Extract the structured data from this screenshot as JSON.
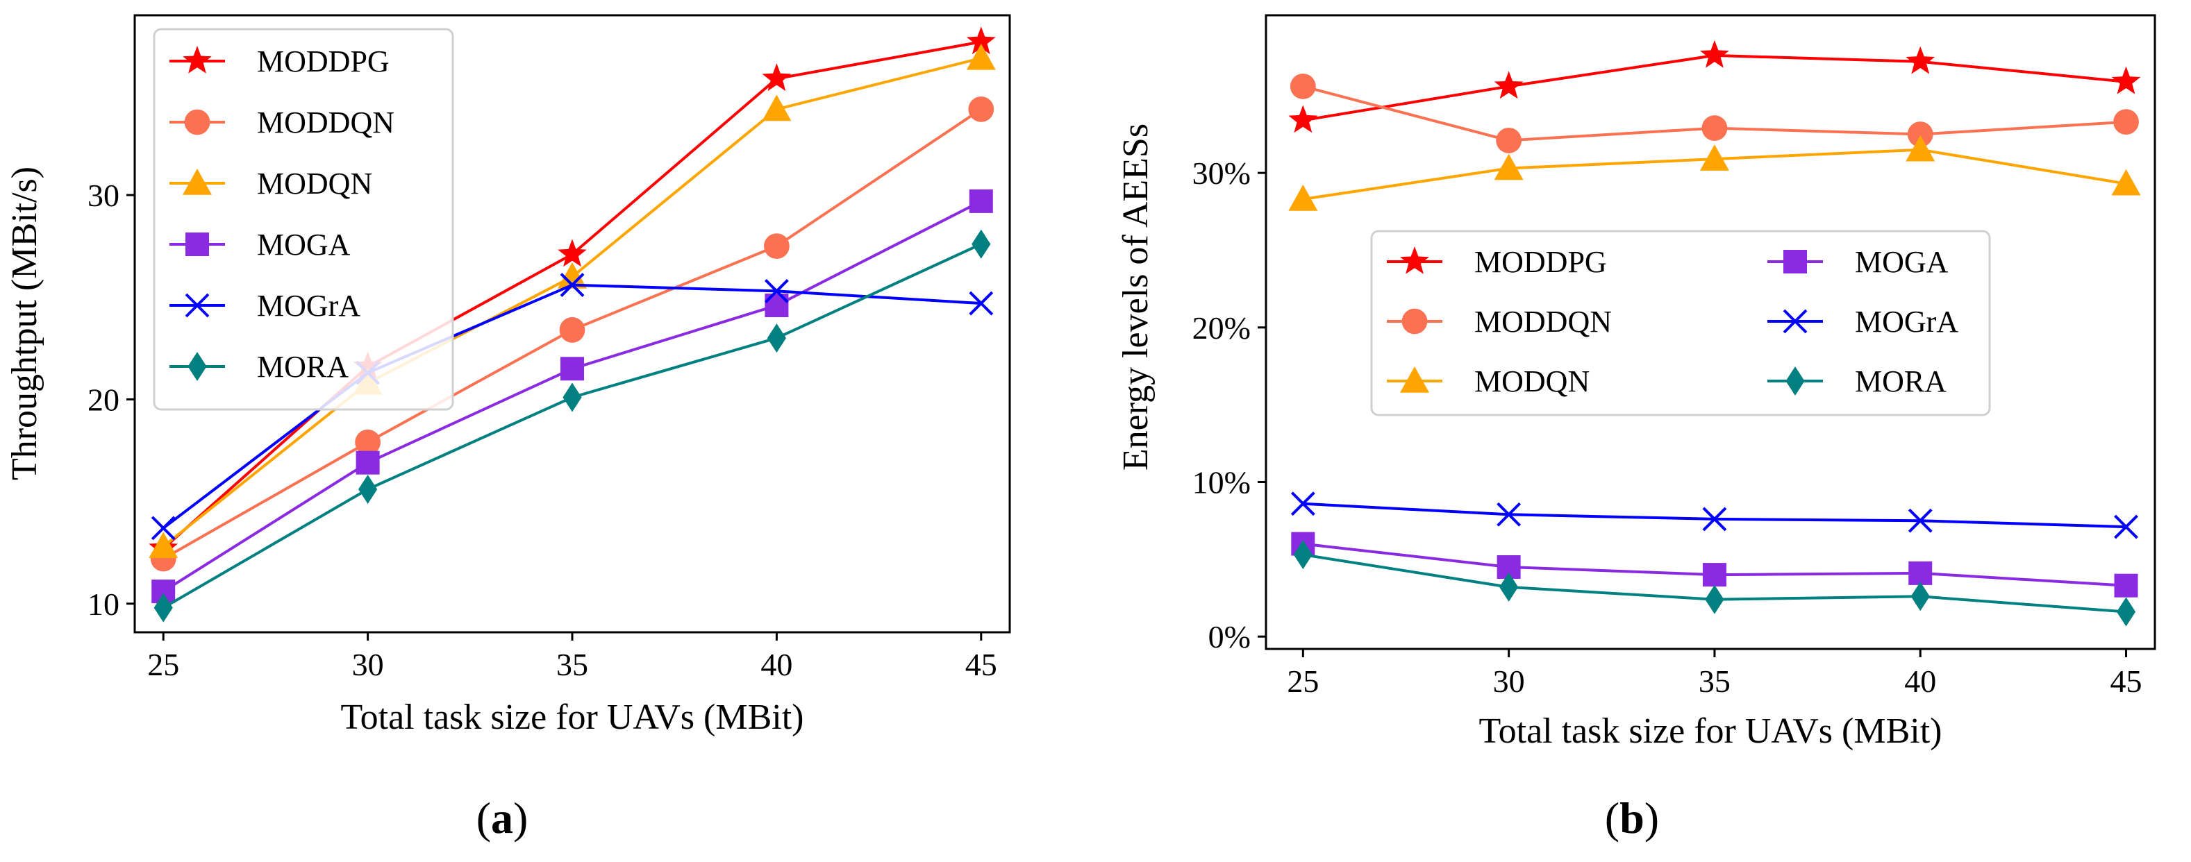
{
  "chart_data": [
    {
      "type": "line",
      "panel": "a",
      "caption_open": "(",
      "caption_letter": "a",
      "caption_close": ")",
      "xlabel": "Total task size for UAVs (MBit)",
      "ylabel": "Throughtput (MBit/s)",
      "x": [
        25,
        30,
        35,
        40,
        45
      ],
      "xticks": [
        "25",
        "30",
        "35",
        "40",
        "45"
      ],
      "xlim": [
        24.3,
        45.7
      ],
      "yticks": [
        "10",
        "20",
        "30"
      ],
      "ytick_values": [
        10,
        20,
        30
      ],
      "ylim": [
        8.6,
        38.8
      ],
      "legend_position": "top-left",
      "series": [
        {
          "name": "MODDPG",
          "color": "#ff0000",
          "marker": "star",
          "values": [
            12.7,
            21.6,
            27.1,
            35.7,
            37.5
          ]
        },
        {
          "name": "MODDQN",
          "color": "#fa7252",
          "marker": "circle",
          "values": [
            12.2,
            17.9,
            23.4,
            27.5,
            34.2
          ]
        },
        {
          "name": "MODQN",
          "color": "#ffa500",
          "marker": "triangle",
          "values": [
            12.8,
            20.8,
            26.0,
            34.2,
            36.7
          ]
        },
        {
          "name": "MOGA",
          "color": "#8a2be2",
          "marker": "square",
          "values": [
            10.6,
            16.9,
            21.5,
            24.6,
            29.7
          ]
        },
        {
          "name": "MOGrA",
          "color": "#0000ff",
          "marker": "x",
          "values": [
            13.7,
            21.3,
            25.6,
            25.3,
            24.7
          ]
        },
        {
          "name": "MORA",
          "color": "#008080",
          "marker": "diamond",
          "values": [
            9.8,
            15.6,
            20.1,
            23.0,
            27.6
          ]
        }
      ]
    },
    {
      "type": "line",
      "panel": "b",
      "caption_open": "(",
      "caption_letter": "b",
      "caption_close": ")",
      "xlabel": "Total task size for UAVs (MBit)",
      "ylabel": "Energy levels of AEESs",
      "x": [
        25,
        30,
        35,
        40,
        45
      ],
      "xticks": [
        "25",
        "30",
        "35",
        "40",
        "45"
      ],
      "xlim": [
        24.1,
        45.7
      ],
      "yticks": [
        "0%",
        "10%",
        "20%",
        "30%"
      ],
      "ytick_values": [
        0,
        10,
        20,
        30
      ],
      "ylim": [
        -0.8,
        40.2
      ],
      "legend_position": "center",
      "series": [
        {
          "name": "MODDPG",
          "color": "#ff0000",
          "marker": "star",
          "values": [
            33.4,
            35.6,
            37.6,
            37.2,
            35.9
          ]
        },
        {
          "name": "MODDQN",
          "color": "#fa7252",
          "marker": "circle",
          "values": [
            35.6,
            32.1,
            32.9,
            32.5,
            33.3
          ]
        },
        {
          "name": "MODQN",
          "color": "#ffa500",
          "marker": "triangle",
          "values": [
            28.3,
            30.3,
            30.9,
            31.5,
            29.3
          ]
        },
        {
          "name": "MOGA",
          "color": "#8a2be2",
          "marker": "square",
          "values": [
            6.0,
            4.5,
            4.0,
            4.1,
            3.3
          ]
        },
        {
          "name": "MOGrA",
          "color": "#0000ff",
          "marker": "x",
          "values": [
            8.6,
            7.9,
            7.6,
            7.5,
            7.1
          ]
        },
        {
          "name": "MORA",
          "color": "#008080",
          "marker": "diamond",
          "values": [
            5.3,
            3.2,
            2.4,
            2.6,
            1.6
          ]
        }
      ]
    }
  ]
}
